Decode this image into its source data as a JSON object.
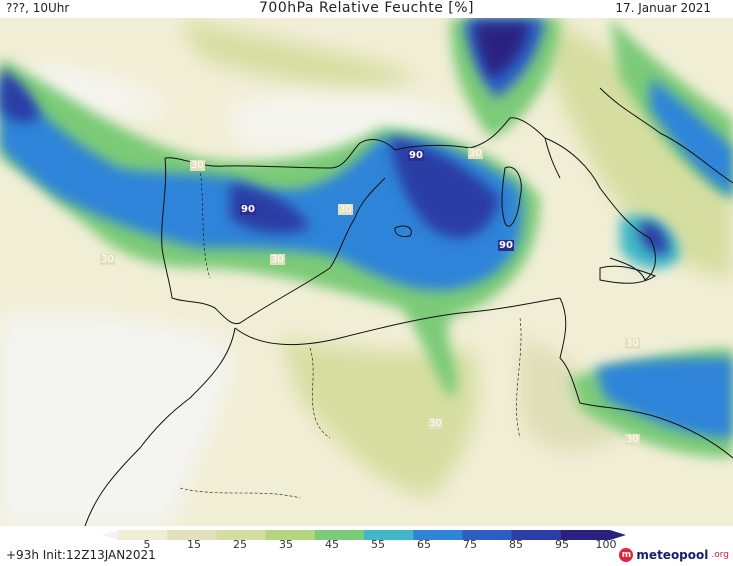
{
  "header": {
    "left": "???, 10Uhr",
    "title": "700hPa Relative Feuchte [%]",
    "date": "17. Januar 2021"
  },
  "map": {
    "contour_labels_30": [
      "30",
      "30",
      "30",
      "30",
      "30",
      "30",
      "30"
    ],
    "contour_labels_90": [
      "90",
      "90",
      "90",
      "90"
    ]
  },
  "legend": {
    "ticks": [
      "5",
      "15",
      "25",
      "35",
      "45",
      "55",
      "65",
      "75",
      "85",
      "95",
      "100"
    ],
    "colors": [
      "#f3f3f3",
      "#f1eed6",
      "#e3e0bd",
      "#d5dea0",
      "#b6d57f",
      "#7ccb78",
      "#40b8c7",
      "#2f84d8",
      "#2c5fc6",
      "#2c3ea5",
      "#2a2080"
    ]
  },
  "footer": {
    "run": "+93h Init:12Z13JAN2021",
    "brand_name": "meteopool",
    "brand_tld": ".org",
    "brand_logo_letter": "m"
  }
}
